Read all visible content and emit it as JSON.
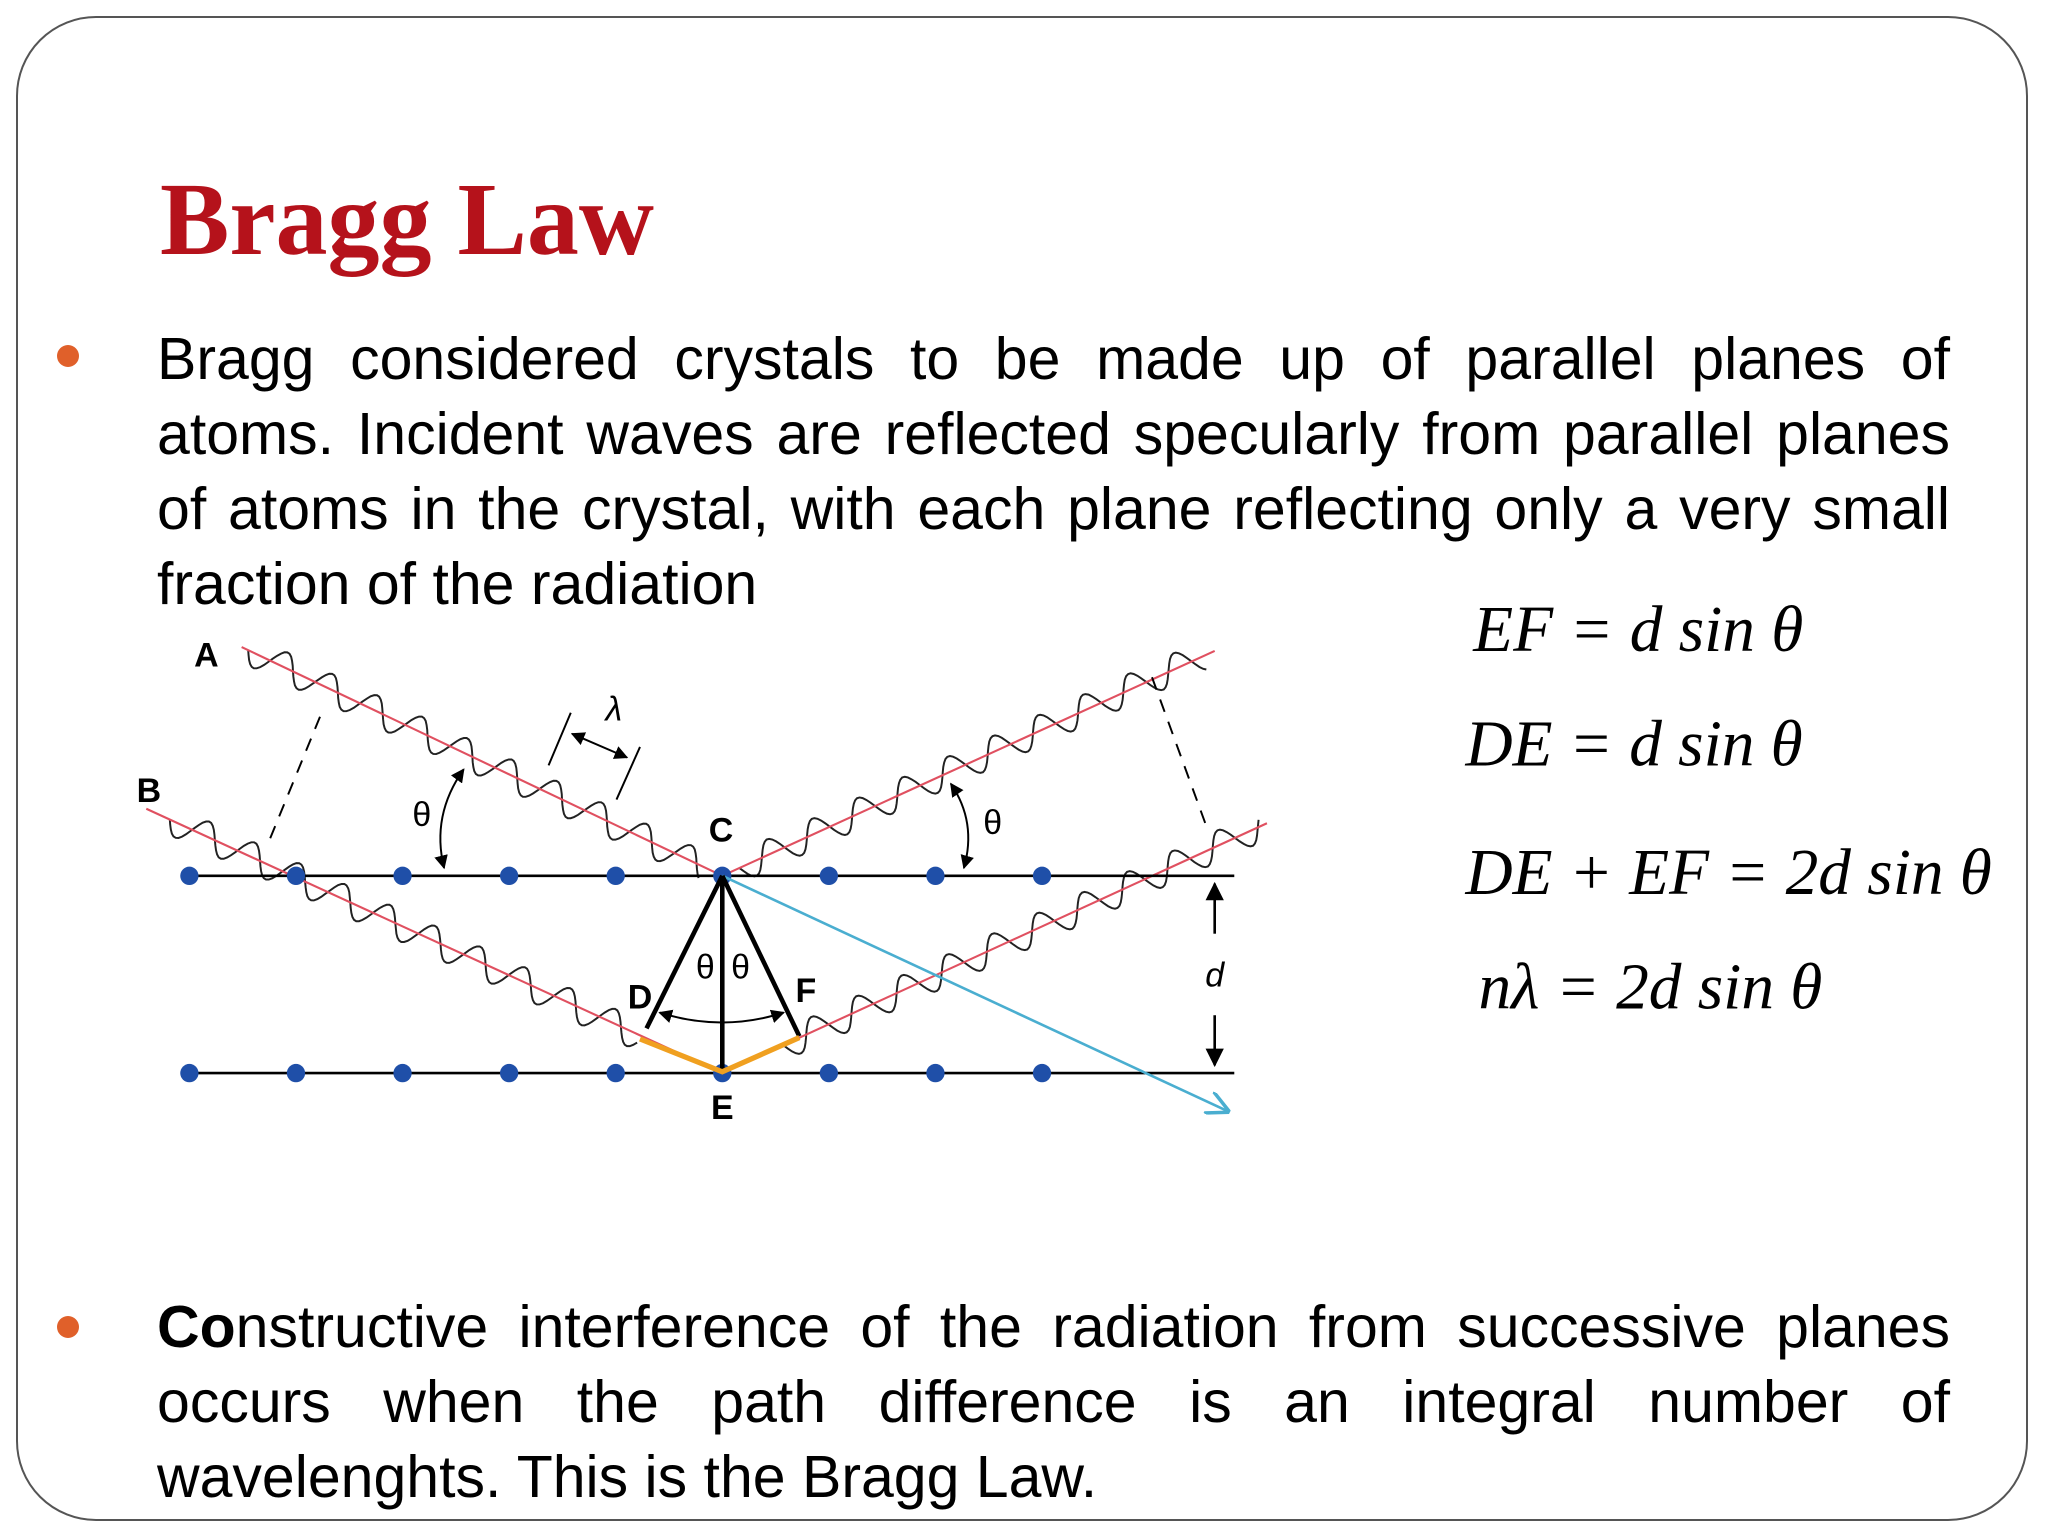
{
  "title": "Bragg Law",
  "bullets": [
    {
      "text": "Bragg considered crystals to be made up of parallel planes of atoms. Incident waves are reflected specularly from parallel planes of atoms in the crystal, with each plane reflecting only a very small fraction of the radiation"
    },
    {
      "bold": "Co",
      "rest": "nstructive interference of the radiation from successive planes occurs when the path difference is an integral number of wavelenghts. This is the Bragg Law."
    }
  ],
  "diagram": {
    "labels": [
      "A",
      "B",
      "C",
      "D",
      "E",
      "F",
      "θ",
      "θ",
      "θ",
      "θ",
      "λ",
      "d"
    ]
  },
  "equations": [
    "EF = d sin θ",
    "DE = d sin θ",
    "DE + EF = 2d sin θ",
    "nλ = 2d sin θ"
  ]
}
